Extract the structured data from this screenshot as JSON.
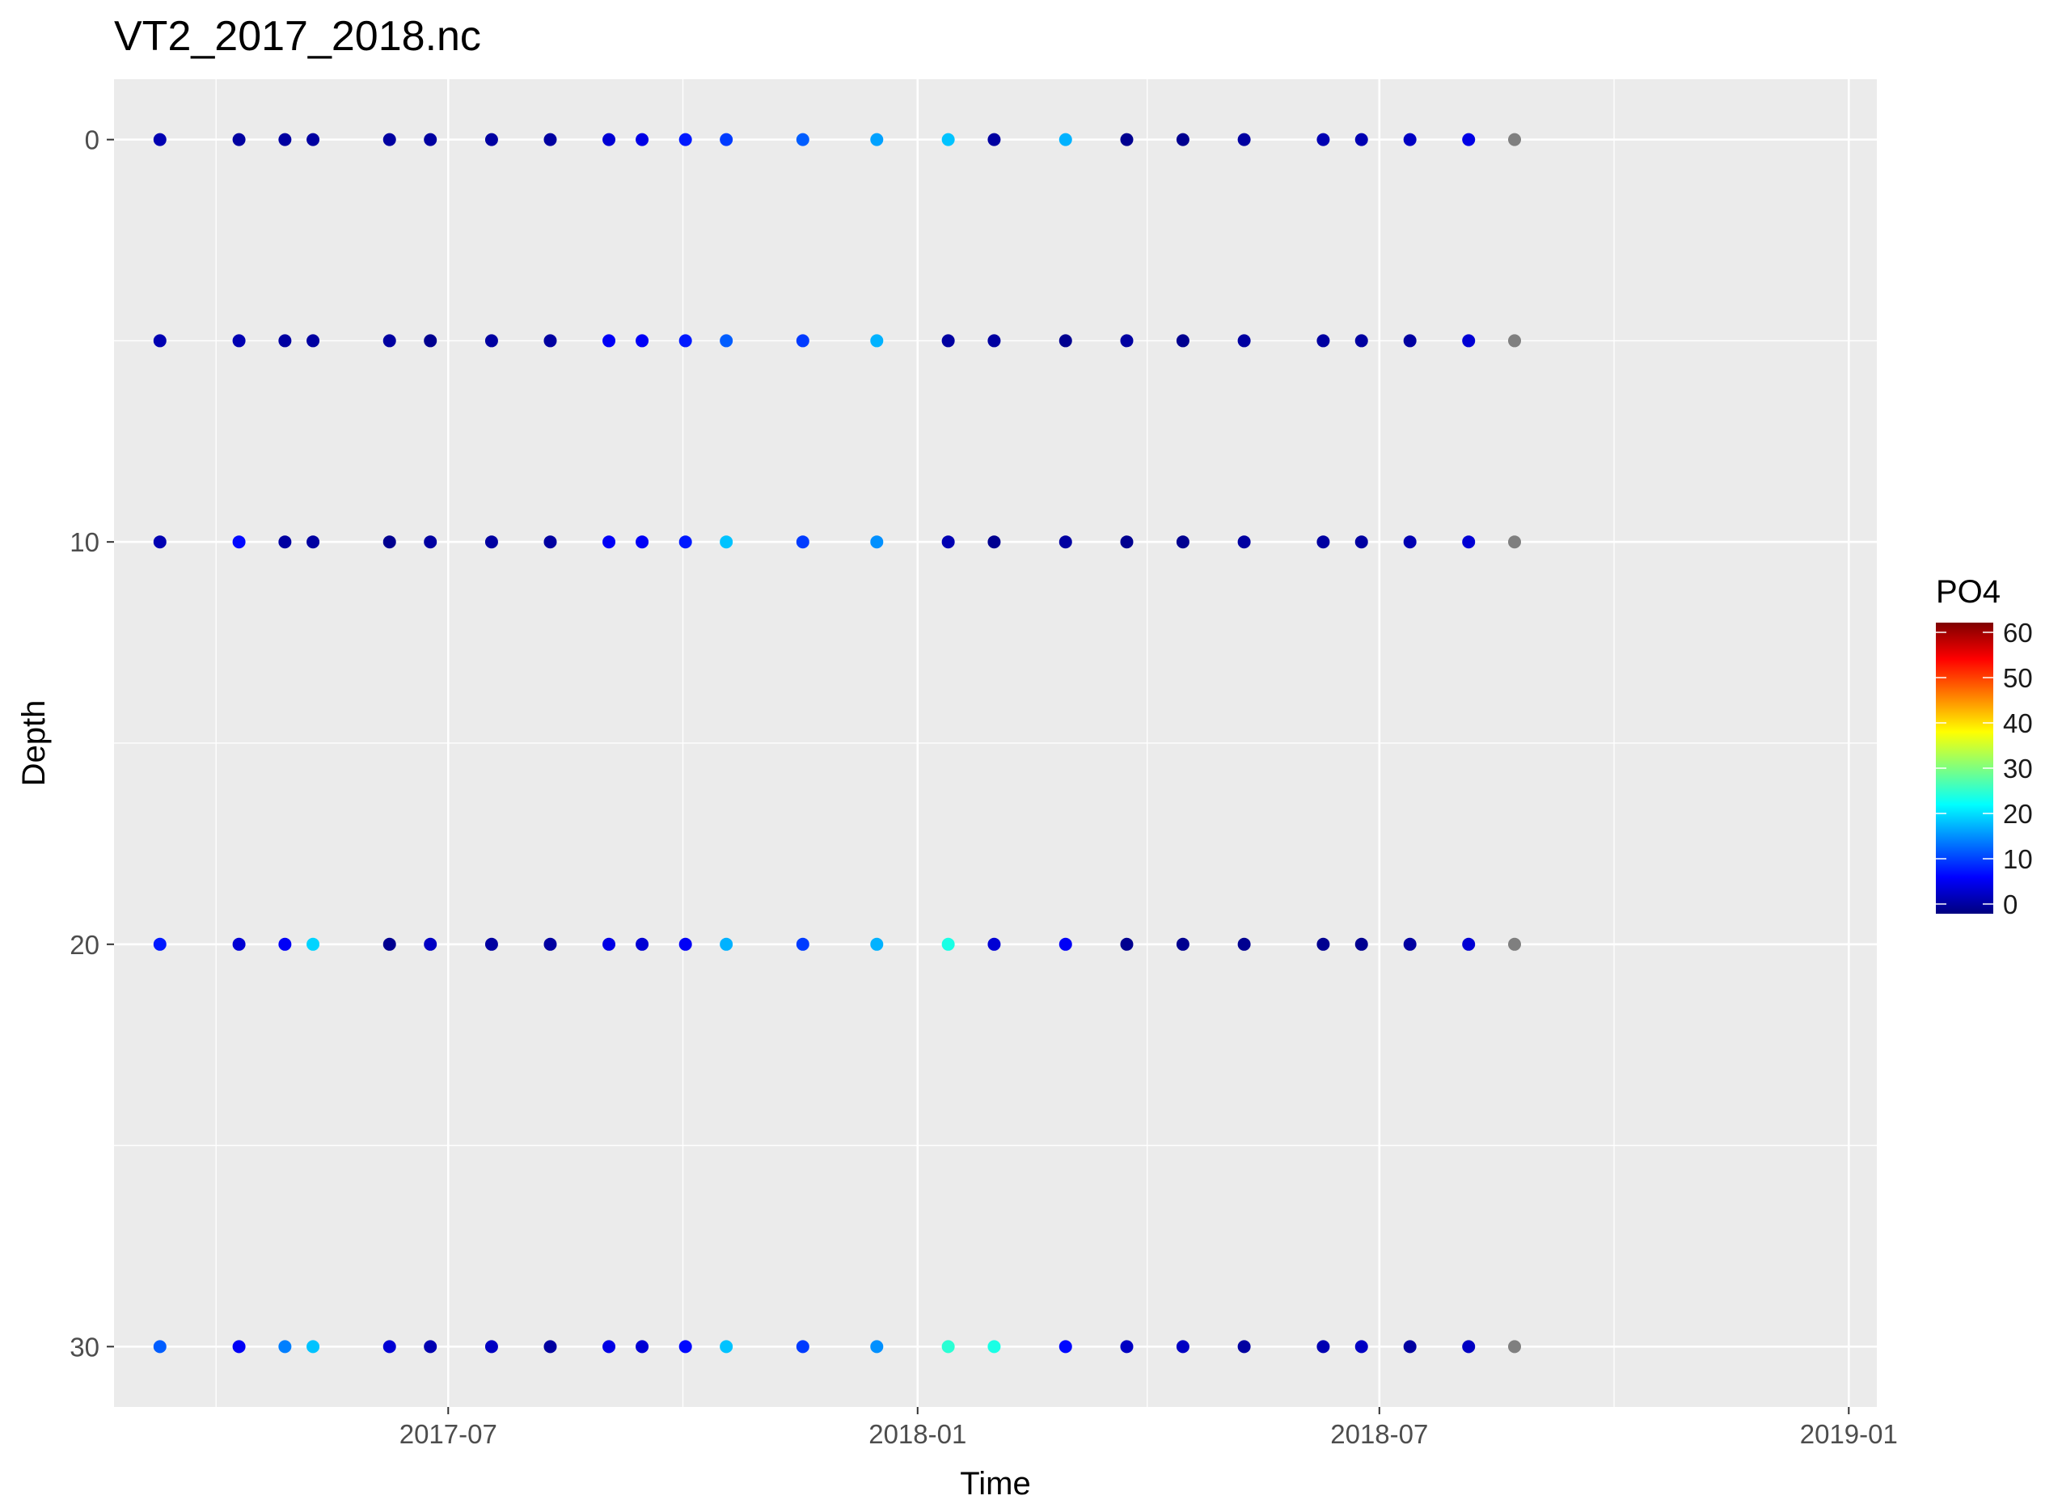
{
  "chart_data": {
    "type": "scatter",
    "title": "VT2_2017_2018.nc",
    "xlabel": "Time",
    "ylabel": "Depth",
    "x_axis": {
      "kind": "date",
      "range": [
        "2017-02-20",
        "2019-01-12"
      ],
      "ticks": [
        "2017-07-01",
        "2018-01-01",
        "2018-07-01",
        "2019-01-01"
      ],
      "tick_labels": [
        "2017-07",
        "2018-01",
        "2018-07",
        "2019-01"
      ]
    },
    "y_axis": {
      "reversed": true,
      "range": [
        -1.5,
        31.5
      ],
      "ticks": [
        0,
        10,
        20,
        30
      ],
      "tick_labels": [
        "0",
        "10",
        "20",
        "30"
      ]
    },
    "grid": true,
    "panel_background": "#ebebeb",
    "grid_color": "#ffffff",
    "na_color": "#7f7f7f",
    "legend": {
      "title": "PO4",
      "placement": "right",
      "range": [
        0,
        60
      ],
      "ticks": [
        0,
        10,
        20,
        30,
        40,
        50,
        60
      ],
      "tick_labels": [
        "0",
        "10",
        "20",
        "30",
        "40",
        "50",
        "60"
      ],
      "colormap": [
        "#00007f",
        "#0000ff",
        "#007fff",
        "#00ffff",
        "#7fff7f",
        "#ffff00",
        "#ff7f00",
        "#ff0000",
        "#7f0000"
      ]
    },
    "depths": [
      0,
      5,
      10,
      20,
      30
    ],
    "dates": [
      "2017-03-10",
      "2017-04-10",
      "2017-04-28",
      "2017-05-09",
      "2017-06-08",
      "2017-06-24",
      "2017-07-18",
      "2017-08-10",
      "2017-09-02",
      "2017-09-15",
      "2017-10-02",
      "2017-10-18",
      "2017-11-17",
      "2017-12-16",
      "2018-01-13",
      "2018-01-31",
      "2018-02-28",
      "2018-03-24",
      "2018-04-15",
      "2018-05-09",
      "2018-06-09",
      "2018-06-24",
      "2018-07-13",
      "2018-08-05",
      "2018-08-23"
    ],
    "po4_by_depth": [
      [
        3,
        2,
        2,
        2,
        2,
        2,
        2,
        2,
        5,
        6,
        9,
        11,
        13,
        17,
        19,
        2,
        18,
        1,
        1,
        2,
        3,
        3,
        4,
        6,
        null
      ],
      [
        3,
        3,
        2,
        2,
        2,
        1,
        2,
        2,
        7,
        7,
        9,
        13,
        11,
        18,
        2,
        2,
        1,
        2,
        1,
        2,
        2,
        2,
        2,
        5,
        null
      ],
      [
        3,
        8,
        2,
        2,
        1,
        2,
        2,
        2,
        7,
        7,
        9,
        19,
        11,
        16,
        3,
        1,
        2,
        1,
        1,
        2,
        2,
        2,
        3,
        5,
        null
      ],
      [
        9,
        5,
        7,
        20,
        1,
        4,
        2,
        2,
        6,
        5,
        7,
        18,
        11,
        18,
        24,
        5,
        7,
        1,
        1,
        1,
        1,
        1,
        2,
        5,
        null
      ],
      [
        13,
        7,
        15,
        19,
        5,
        3,
        4,
        2,
        6,
        5,
        8,
        19,
        11,
        16,
        25,
        24,
        8,
        4,
        4,
        2,
        3,
        4,
        2,
        4,
        null
      ]
    ]
  }
}
